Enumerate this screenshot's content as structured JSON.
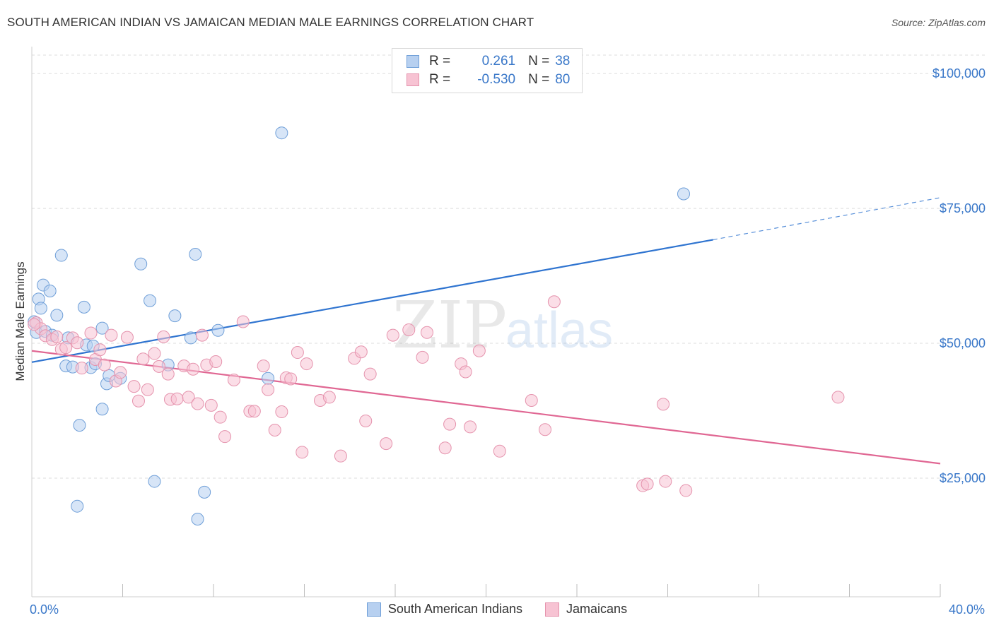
{
  "title": "SOUTH AMERICAN INDIAN VS JAMAICAN MEDIAN MALE EARNINGS CORRELATION CHART",
  "source": "Source: ZipAtlas.com",
  "watermark": {
    "zip": "ZIP",
    "atlas": "atlas"
  },
  "legend_top": [
    {
      "r_label": "R =",
      "r_value": "0.261",
      "n_label": "N =",
      "n_value": "38"
    },
    {
      "r_label": "R =",
      "r_value": "-0.530",
      "n_label": "N =",
      "n_value": "80"
    }
  ],
  "colors": {
    "blue_fill": "#b7d0f0",
    "blue_stroke": "#6f9fd8",
    "blue_line": "#2f74d0",
    "pink_fill": "#f7c3d3",
    "pink_stroke": "#e593ad",
    "pink_line": "#e06793",
    "axis_text": "#3a78c9",
    "grid": "#dddddd"
  },
  "chart_data": {
    "type": "scatter",
    "title": "SOUTH AMERICAN INDIAN VS JAMAICAN MEDIAN MALE EARNINGS CORRELATION CHART",
    "xlabel": "",
    "ylabel": "Median Male Earnings",
    "xlim": [
      0,
      40
    ],
    "ylim": [
      3000,
      105000
    ],
    "x_tick_labels": [
      "0.0%",
      "40.0%"
    ],
    "y_ticks": [
      25000,
      50000,
      75000,
      100000
    ],
    "y_tick_labels": [
      "$25,000",
      "$50,000",
      "$75,000",
      "$100,000"
    ],
    "grid": true,
    "legend_position": "bottom",
    "series": [
      {
        "name": "South American Indians",
        "color": "blue",
        "r": 0.261,
        "n": 38,
        "trend": {
          "x0": 0,
          "y0": 46500,
          "x1": 30,
          "y1": 69200,
          "dash_x1": 40,
          "dash_y1": 77000
        },
        "points": [
          [
            0.2,
            52000
          ],
          [
            0.3,
            58200
          ],
          [
            0.4,
            56500
          ],
          [
            0.5,
            60800
          ],
          [
            0.6,
            52200
          ],
          [
            0.8,
            59700
          ],
          [
            0.9,
            51500
          ],
          [
            1.1,
            55200
          ],
          [
            1.3,
            66300
          ],
          [
            1.5,
            45800
          ],
          [
            1.6,
            51000
          ],
          [
            1.8,
            45600
          ],
          [
            2.1,
            34800
          ],
          [
            2.3,
            56700
          ],
          [
            2.4,
            49700
          ],
          [
            2.6,
            45500
          ],
          [
            2.7,
            49500
          ],
          [
            2.8,
            46200
          ],
          [
            3.1,
            37800
          ],
          [
            3.1,
            52800
          ],
          [
            3.3,
            42500
          ],
          [
            3.4,
            44000
          ],
          [
            3.9,
            43500
          ],
          [
            2.0,
            19800
          ],
          [
            4.8,
            64700
          ],
          [
            5.2,
            57900
          ],
          [
            5.4,
            24400
          ],
          [
            6.0,
            46000
          ],
          [
            6.3,
            55100
          ],
          [
            7.0,
            51000
          ],
          [
            7.2,
            66500
          ],
          [
            7.3,
            17400
          ],
          [
            7.6,
            22400
          ],
          [
            8.2,
            52400
          ],
          [
            10.4,
            43500
          ],
          [
            11.0,
            89000
          ],
          [
            28.7,
            77700
          ],
          [
            0.1,
            54000
          ]
        ]
      },
      {
        "name": "Jamaicans",
        "color": "pink",
        "r": -0.53,
        "n": 80,
        "trend": {
          "x0": 0,
          "y0": 48600,
          "x1": 40,
          "y1": 27700
        },
        "points": [
          [
            0.2,
            53800
          ],
          [
            0.4,
            52700
          ],
          [
            0.6,
            51400
          ],
          [
            0.9,
            50700
          ],
          [
            1.1,
            51200
          ],
          [
            1.3,
            48900
          ],
          [
            1.5,
            49200
          ],
          [
            1.8,
            51000
          ],
          [
            2.0,
            50100
          ],
          [
            2.2,
            45400
          ],
          [
            2.6,
            51900
          ],
          [
            2.8,
            47000
          ],
          [
            3.0,
            48800
          ],
          [
            3.2,
            46000
          ],
          [
            3.5,
            51500
          ],
          [
            3.7,
            43000
          ],
          [
            3.9,
            44600
          ],
          [
            4.2,
            51100
          ],
          [
            4.5,
            42000
          ],
          [
            4.7,
            39300
          ],
          [
            4.9,
            47100
          ],
          [
            5.1,
            41400
          ],
          [
            5.4,
            48100
          ],
          [
            5.6,
            45700
          ],
          [
            5.8,
            51200
          ],
          [
            6.0,
            44300
          ],
          [
            6.1,
            39600
          ],
          [
            6.4,
            39700
          ],
          [
            6.7,
            45800
          ],
          [
            6.9,
            40000
          ],
          [
            7.1,
            45200
          ],
          [
            7.3,
            38800
          ],
          [
            7.5,
            51500
          ],
          [
            7.7,
            46000
          ],
          [
            7.9,
            38500
          ],
          [
            8.1,
            46600
          ],
          [
            8.3,
            36300
          ],
          [
            8.5,
            32700
          ],
          [
            8.9,
            43200
          ],
          [
            9.3,
            54000
          ],
          [
            9.6,
            37400
          ],
          [
            9.8,
            37400
          ],
          [
            10.2,
            45800
          ],
          [
            10.4,
            41400
          ],
          [
            10.7,
            33900
          ],
          [
            11.0,
            37300
          ],
          [
            11.2,
            43600
          ],
          [
            11.4,
            43400
          ],
          [
            11.7,
            48300
          ],
          [
            11.9,
            29800
          ],
          [
            12.1,
            46200
          ],
          [
            12.7,
            39400
          ],
          [
            13.1,
            40000
          ],
          [
            13.6,
            29100
          ],
          [
            14.2,
            47200
          ],
          [
            14.5,
            48400
          ],
          [
            14.7,
            35600
          ],
          [
            14.9,
            44300
          ],
          [
            15.6,
            31400
          ],
          [
            15.9,
            51500
          ],
          [
            16.6,
            52500
          ],
          [
            17.2,
            47400
          ],
          [
            17.4,
            52000
          ],
          [
            18.2,
            30600
          ],
          [
            18.4,
            35000
          ],
          [
            18.9,
            46200
          ],
          [
            19.1,
            44700
          ],
          [
            19.3,
            34500
          ],
          [
            19.7,
            48600
          ],
          [
            20.6,
            30000
          ],
          [
            22.0,
            39400
          ],
          [
            22.6,
            34000
          ],
          [
            23.0,
            57700
          ],
          [
            26.9,
            23600
          ],
          [
            27.1,
            23900
          ],
          [
            27.8,
            38700
          ],
          [
            27.9,
            24400
          ],
          [
            28.8,
            22700
          ],
          [
            35.5,
            40000
          ],
          [
            0.1,
            53500
          ]
        ]
      }
    ]
  }
}
